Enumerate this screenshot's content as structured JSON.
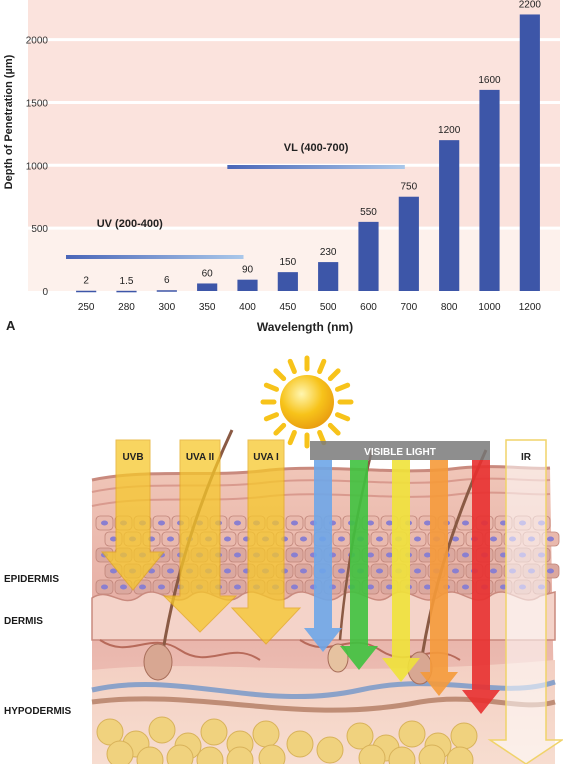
{
  "panel_a": {
    "panel_label": "A",
    "chart_data": {
      "type": "bar",
      "categories": [
        "250",
        "280",
        "300",
        "350",
        "400",
        "450",
        "500",
        "600",
        "700",
        "800",
        "1000",
        "1200"
      ],
      "values": [
        2,
        1.5,
        6,
        60,
        90,
        150,
        230,
        550,
        750,
        1200,
        1600,
        2200
      ],
      "value_labels": [
        "2",
        "1.5",
        "6",
        "60",
        "90",
        "150",
        "230",
        "550",
        "750",
        "1200",
        "1600",
        "2200"
      ],
      "xlabel": "Wavelength (nm)",
      "ylabel": "Depth of Penetration (µm)",
      "yticks": [
        "0",
        "500",
        "1000",
        "1500",
        "2000"
      ],
      "ylim": [
        0,
        2250
      ],
      "bar_color": "#3d56a8",
      "range_annotations": [
        {
          "label": "UV (200-400)",
          "from_category": "250",
          "to_category": "400"
        },
        {
          "label": "VL (400-700)",
          "from_category": "400",
          "to_category": "700"
        }
      ],
      "grid": true,
      "background_colors": [
        "#fbe3dd",
        "#fdf1ec"
      ]
    }
  },
  "panel_b": {
    "beams": {
      "uvb": "UVB",
      "uva2": "UVA II",
      "uva1": "UVA I",
      "visible": "VISIBLE LIGHT",
      "ir": "IR"
    },
    "layers": {
      "epidermis": "EPIDERMIS",
      "dermis": "DERMIS",
      "hypodermis": "HYPODERMIS"
    },
    "colors": {
      "uv_arrow": "#f6c82b",
      "visible_blue": "#6ea6e8",
      "visible_green": "#3fc23f",
      "visible_yellow": "#f0e23a",
      "visible_orange": "#f59a3a",
      "visible_red": "#e83030",
      "sun": "#f7c31a",
      "visible_bar": "#7a7a7a"
    }
  }
}
